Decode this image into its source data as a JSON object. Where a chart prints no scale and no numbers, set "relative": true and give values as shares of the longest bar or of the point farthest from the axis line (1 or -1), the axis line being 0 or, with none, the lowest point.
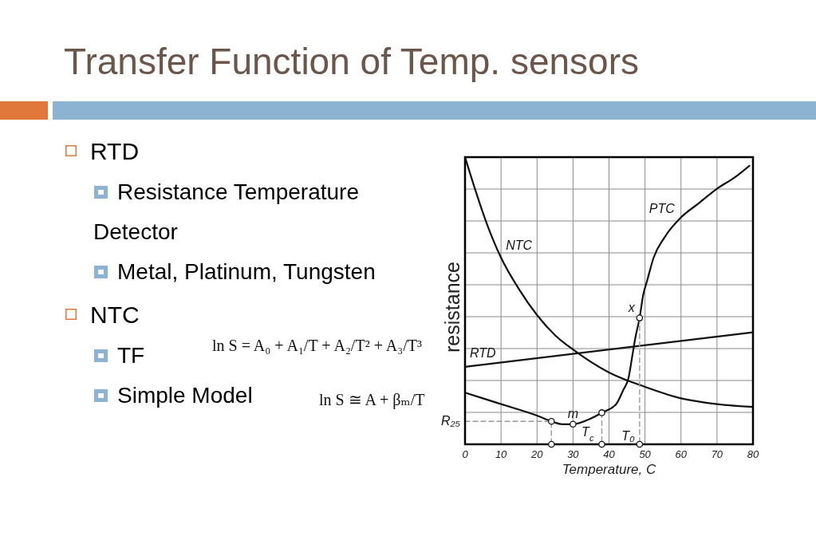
{
  "chart_data": {
    "type": "line",
    "title": "Transfer Function of Temp. sensors",
    "xlabel": "Temperature, C",
    "ylabel": "resistance",
    "relative": true,
    "xlim": [
      0,
      80
    ],
    "xticks": [
      0,
      10,
      20,
      30,
      40,
      50,
      60,
      70,
      80
    ],
    "grid": true,
    "series": [
      {
        "name": "NTC",
        "color": "#111111",
        "x": [
          0,
          3,
          6,
          10,
          15,
          20,
          25,
          30,
          40,
          50,
          60,
          70,
          80
        ],
        "values": [
          1.0,
          0.88,
          0.77,
          0.65,
          0.54,
          0.45,
          0.38,
          0.33,
          0.25,
          0.2,
          0.16,
          0.14,
          0.13
        ]
      },
      {
        "name": "RTD",
        "color": "#111111",
        "x": [
          0,
          80
        ],
        "values": [
          0.27,
          0.39
        ]
      },
      {
        "name": "PTC",
        "color": "#111111",
        "x": [
          0,
          10,
          20,
          24,
          27,
          30,
          35,
          38,
          42,
          44,
          45.4,
          46.5,
          47.3,
          48.5,
          49.5,
          50.6,
          52.4,
          55.4,
          60,
          65,
          70,
          75,
          79
        ],
        "values": [
          0.18,
          0.14,
          0.1,
          0.08,
          0.07,
          0.07,
          0.09,
          0.11,
          0.14,
          0.19,
          0.23,
          0.31,
          0.37,
          0.44,
          0.52,
          0.57,
          0.65,
          0.72,
          0.79,
          0.84,
          0.89,
          0.93,
          0.97
        ]
      },
      {
        "type": "line",
        "line_style": "dashed",
        "color": "#999999",
        "x": [
          0,
          24,
          24
        ],
        "values": [
          0.08,
          0.08,
          0
        ]
      },
      {
        "type": "line",
        "line_style": "dashed",
        "color": "#999999",
        "x": [
          38,
          38
        ],
        "values": [
          0.11,
          0
        ]
      },
      {
        "type": "line",
        "line_style": "dashed",
        "color": "#999999",
        "x": [
          48.5,
          48.5
        ],
        "values": [
          0.44,
          0
        ]
      },
      {
        "type": "scatter",
        "marker": "circle",
        "color": "#111111",
        "x": [
          24,
          30,
          38,
          48.5,
          24,
          38,
          48.5
        ],
        "values": [
          0.08,
          0.07,
          0.11,
          0.44,
          0,
          0,
          0
        ]
      }
    ],
    "annotations": [
      "RTD",
      "Resistance Temperature Detector",
      "Metal, Platinum, Tungsten",
      "NTC",
      "TF",
      "ln S = A₀ + A₁/T + A₂/T² + A₃/T³",
      "Simple Model",
      "ln S ≅ A + βₘ/T",
      {
        "text": "R₂₅",
        "x": 0,
        "y": 0.08
      },
      {
        "text": "m",
        "x": 30,
        "y": 0.07
      },
      {
        "text": "x",
        "x": 48.5,
        "y": 0.44
      },
      {
        "text": "T$_{c}$",
        "x": 38,
        "y": 0
      },
      {
        "text": "T₀",
        "x": 48.5,
        "y": 0
      }
    ]
  }
}
